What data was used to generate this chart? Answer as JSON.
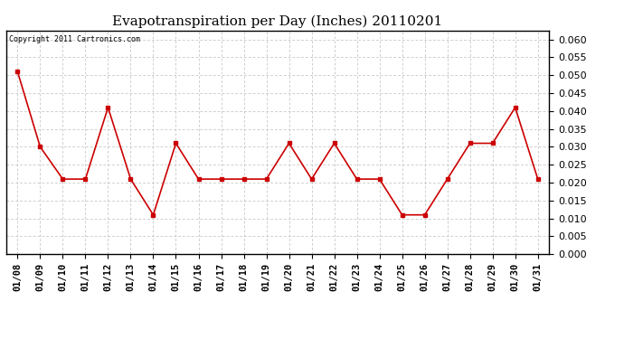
{
  "title": "Evapotranspiration per Day (Inches) 20110201",
  "copyright_text": "Copyright 2011 Cartronics.com",
  "x_labels": [
    "01/08",
    "01/09",
    "01/10",
    "01/11",
    "01/12",
    "01/13",
    "01/14",
    "01/15",
    "01/16",
    "01/17",
    "01/18",
    "01/19",
    "01/20",
    "01/21",
    "01/22",
    "01/23",
    "01/24",
    "01/25",
    "01/26",
    "01/27",
    "01/28",
    "01/29",
    "01/30",
    "01/31"
  ],
  "y_values": [
    0.051,
    0.03,
    0.021,
    0.021,
    0.041,
    0.021,
    0.011,
    0.031,
    0.021,
    0.021,
    0.021,
    0.021,
    0.031,
    0.021,
    0.031,
    0.021,
    0.021,
    0.011,
    0.011,
    0.021,
    0.031,
    0.031,
    0.041,
    0.021
  ],
  "line_color": "#cc0000",
  "marker": "s",
  "marker_size": 3,
  "ylim": [
    0.0,
    0.0625
  ],
  "yticks": [
    0.0,
    0.005,
    0.01,
    0.015,
    0.02,
    0.025,
    0.03,
    0.035,
    0.04,
    0.045,
    0.05,
    0.055,
    0.06
  ],
  "background_color": "#ffffff",
  "grid_color": "#bbbbbb",
  "title_fontsize": 11,
  "copyright_fontsize": 6,
  "tick_fontsize": 7.5,
  "y_tick_fontsize": 8
}
